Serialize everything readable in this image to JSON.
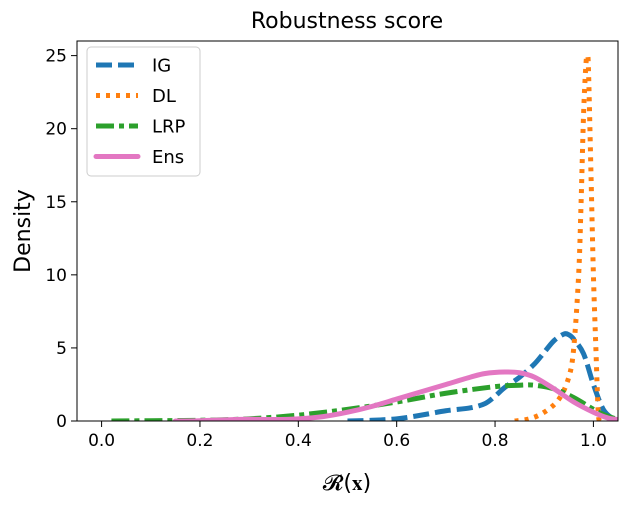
{
  "chart_data": {
    "type": "line",
    "title": "Robustness score",
    "xlabel": "𝓡̂(𝐱)",
    "ylabel": "Density",
    "xlim": [
      -0.05,
      1.05
    ],
    "ylim": [
      0,
      26
    ],
    "x_ticks": [
      0.0,
      0.2,
      0.4,
      0.6,
      0.8,
      1.0
    ],
    "x_tick_labels": [
      "0.0",
      "0.2",
      "0.4",
      "0.6",
      "0.8",
      "1.0"
    ],
    "y_ticks": [
      0,
      5,
      10,
      15,
      20,
      25
    ],
    "y_tick_labels": [
      "0",
      "5",
      "10",
      "15",
      "20",
      "25"
    ],
    "grid": false,
    "legend_position": "top-left",
    "series": [
      {
        "name": "IG",
        "color": "#1f77b4",
        "style": "dashed",
        "points": [
          [
            0.5,
            0.0
          ],
          [
            0.55,
            0.05
          ],
          [
            0.6,
            0.15
          ],
          [
            0.65,
            0.4
          ],
          [
            0.7,
            0.7
          ],
          [
            0.75,
            0.9
          ],
          [
            0.78,
            1.2
          ],
          [
            0.8,
            1.7
          ],
          [
            0.82,
            2.3
          ],
          [
            0.85,
            3.0
          ],
          [
            0.88,
            3.9
          ],
          [
            0.9,
            4.7
          ],
          [
            0.92,
            5.5
          ],
          [
            0.94,
            5.95
          ],
          [
            0.95,
            5.9
          ],
          [
            0.96,
            5.6
          ],
          [
            0.98,
            4.6
          ],
          [
            1.0,
            2.5
          ],
          [
            1.02,
            0.8
          ],
          [
            1.04,
            0.15
          ],
          [
            1.05,
            0.05
          ]
        ]
      },
      {
        "name": "DL",
        "color": "#ff7f0e",
        "style": "dotted",
        "points": [
          [
            0.84,
            0.0
          ],
          [
            0.87,
            0.15
          ],
          [
            0.9,
            0.6
          ],
          [
            0.93,
            1.5
          ],
          [
            0.95,
            3.0
          ],
          [
            0.96,
            5.0
          ],
          [
            0.97,
            10.0
          ],
          [
            0.975,
            15.0
          ],
          [
            0.98,
            21.0
          ],
          [
            0.985,
            24.5
          ],
          [
            0.988,
            24.9
          ],
          [
            0.99,
            24.0
          ],
          [
            0.995,
            17.0
          ],
          [
            1.0,
            10.0
          ],
          [
            1.005,
            5.0
          ],
          [
            1.01,
            0.5
          ],
          [
            1.015,
            0.0
          ]
        ]
      },
      {
        "name": "LRP",
        "color": "#2ca02c",
        "style": "dashdot",
        "points": [
          [
            0.02,
            0.0
          ],
          [
            0.1,
            0.02
          ],
          [
            0.2,
            0.05
          ],
          [
            0.3,
            0.15
          ],
          [
            0.4,
            0.4
          ],
          [
            0.5,
            0.8
          ],
          [
            0.6,
            1.3
          ],
          [
            0.7,
            1.9
          ],
          [
            0.8,
            2.35
          ],
          [
            0.85,
            2.45
          ],
          [
            0.88,
            2.45
          ],
          [
            0.92,
            2.2
          ],
          [
            0.96,
            1.6
          ],
          [
            1.0,
            0.8
          ],
          [
            1.02,
            0.45
          ],
          [
            1.04,
            0.2
          ],
          [
            1.05,
            0.15
          ]
        ]
      },
      {
        "name": "Ens",
        "color": "#e377c2",
        "style": "solid",
        "points": [
          [
            0.15,
            0.0
          ],
          [
            0.2,
            0.02
          ],
          [
            0.25,
            0.08
          ],
          [
            0.3,
            0.12
          ],
          [
            0.35,
            0.1
          ],
          [
            0.4,
            0.15
          ],
          [
            0.45,
            0.3
          ],
          [
            0.5,
            0.6
          ],
          [
            0.55,
            1.0
          ],
          [
            0.6,
            1.5
          ],
          [
            0.65,
            2.0
          ],
          [
            0.7,
            2.5
          ],
          [
            0.75,
            3.0
          ],
          [
            0.78,
            3.25
          ],
          [
            0.82,
            3.35
          ],
          [
            0.85,
            3.3
          ],
          [
            0.88,
            3.0
          ],
          [
            0.92,
            2.2
          ],
          [
            0.96,
            1.3
          ],
          [
            1.0,
            0.6
          ],
          [
            1.03,
            0.2
          ],
          [
            1.05,
            0.1
          ]
        ]
      }
    ]
  }
}
